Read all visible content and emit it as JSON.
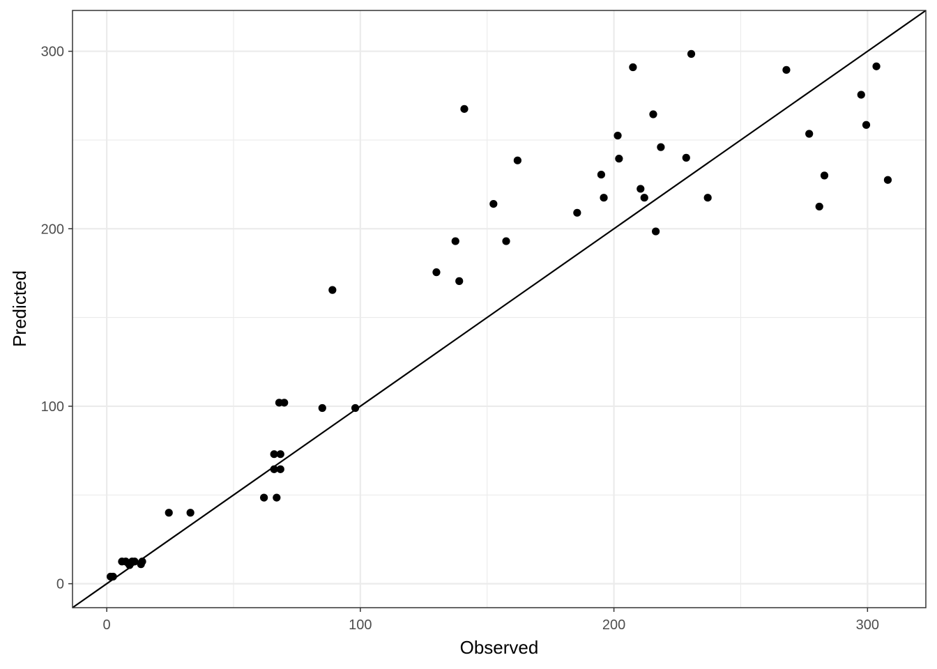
{
  "chart_data": {
    "type": "scatter",
    "xlabel": "Observed",
    "ylabel": "Predicted",
    "xlim": [
      -13.5,
      323
    ],
    "ylim": [
      -13.5,
      323
    ],
    "x_ticks": [
      0,
      100,
      200,
      300
    ],
    "y_ticks": [
      0,
      100,
      200,
      300
    ],
    "x_tick_labels": [
      "0",
      "100",
      "200",
      "300"
    ],
    "y_tick_labels": [
      "0",
      "100",
      "200",
      "300"
    ],
    "grid": true,
    "reference_line": {
      "slope": 1,
      "intercept": 0
    },
    "colors": {
      "points": "#000000",
      "grid": "#ebebeb",
      "axis_text": "#4d4d4d",
      "panel_border": "#333333"
    },
    "points": [
      {
        "x": 1.5,
        "y": 4
      },
      {
        "x": 2.5,
        "y": 4
      },
      {
        "x": 6,
        "y": 12.5
      },
      {
        "x": 7.5,
        "y": 12.5
      },
      {
        "x": 8.5,
        "y": 11.5
      },
      {
        "x": 9,
        "y": 10.5
      },
      {
        "x": 10,
        "y": 12.5
      },
      {
        "x": 11,
        "y": 12.5
      },
      {
        "x": 13.5,
        "y": 11
      },
      {
        "x": 14,
        "y": 12.5
      },
      {
        "x": 24.5,
        "y": 40
      },
      {
        "x": 33,
        "y": 40
      },
      {
        "x": 62,
        "y": 48.5
      },
      {
        "x": 67,
        "y": 48.5
      },
      {
        "x": 66,
        "y": 64.5
      },
      {
        "x": 68.5,
        "y": 64.5
      },
      {
        "x": 66,
        "y": 73
      },
      {
        "x": 68.5,
        "y": 73
      },
      {
        "x": 68,
        "y": 102
      },
      {
        "x": 70,
        "y": 102
      },
      {
        "x": 85,
        "y": 99
      },
      {
        "x": 98,
        "y": 99
      },
      {
        "x": 89,
        "y": 165.5
      },
      {
        "x": 130,
        "y": 175.5
      },
      {
        "x": 137.5,
        "y": 193
      },
      {
        "x": 139,
        "y": 170.5
      },
      {
        "x": 141,
        "y": 267.5
      },
      {
        "x": 152.5,
        "y": 214
      },
      {
        "x": 157.5,
        "y": 193
      },
      {
        "x": 162,
        "y": 238.5
      },
      {
        "x": 185.5,
        "y": 209
      },
      {
        "x": 195,
        "y": 230.5
      },
      {
        "x": 196,
        "y": 217.5
      },
      {
        "x": 201.5,
        "y": 252.5
      },
      {
        "x": 202,
        "y": 239.5
      },
      {
        "x": 207.5,
        "y": 291
      },
      {
        "x": 210.5,
        "y": 222.5
      },
      {
        "x": 212,
        "y": 217.5
      },
      {
        "x": 215.5,
        "y": 264.5
      },
      {
        "x": 216.5,
        "y": 198.5
      },
      {
        "x": 218.5,
        "y": 246
      },
      {
        "x": 228.5,
        "y": 240
      },
      {
        "x": 230.5,
        "y": 298.5
      },
      {
        "x": 237,
        "y": 217.5
      },
      {
        "x": 268,
        "y": 289.5
      },
      {
        "x": 277,
        "y": 253.5
      },
      {
        "x": 281,
        "y": 212.5
      },
      {
        "x": 283,
        "y": 230
      },
      {
        "x": 297.5,
        "y": 275.5
      },
      {
        "x": 299.5,
        "y": 258.5
      },
      {
        "x": 303.5,
        "y": 291.5
      },
      {
        "x": 308,
        "y": 227.5
      }
    ]
  }
}
